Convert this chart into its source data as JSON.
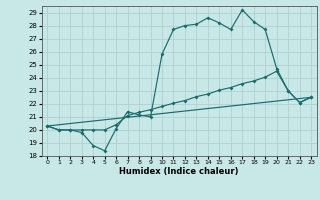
{
  "xlabel": "Humidex (Indice chaleur)",
  "bg_color": "#c8e8e8",
  "grid_color": "#aacccc",
  "line_color": "#1a6b6b",
  "ylim": [
    18,
    29.5
  ],
  "xlim": [
    -0.5,
    23.5
  ],
  "yticks": [
    18,
    19,
    20,
    21,
    22,
    23,
    24,
    25,
    26,
    27,
    28,
    29
  ],
  "xticks": [
    0,
    1,
    2,
    3,
    4,
    5,
    6,
    7,
    8,
    9,
    10,
    11,
    12,
    13,
    14,
    15,
    16,
    17,
    18,
    19,
    20,
    21,
    22,
    23
  ],
  "line1_x": [
    0,
    1,
    2,
    3,
    4,
    5,
    6,
    7,
    8,
    9,
    10,
    11,
    12,
    13,
    14,
    15,
    16,
    17,
    18,
    19,
    20,
    21,
    22,
    23
  ],
  "line1_y": [
    20.3,
    20.0,
    20.0,
    19.8,
    18.8,
    18.4,
    20.1,
    21.4,
    21.15,
    21.0,
    25.8,
    27.7,
    28.0,
    28.1,
    28.6,
    28.2,
    27.7,
    29.2,
    28.3,
    27.7,
    24.7,
    23.0,
    22.1,
    22.5
  ],
  "line2_x": [
    0,
    1,
    2,
    3,
    4,
    5,
    6,
    7,
    8,
    9,
    10,
    11,
    12,
    13,
    14,
    15,
    16,
    17,
    18,
    19,
    20,
    21,
    22,
    23
  ],
  "line2_y": [
    20.3,
    20.0,
    20.0,
    20.0,
    20.0,
    20.0,
    20.4,
    21.1,
    21.35,
    21.55,
    21.8,
    22.05,
    22.25,
    22.55,
    22.75,
    23.05,
    23.25,
    23.55,
    23.75,
    24.05,
    24.5,
    23.0,
    22.1,
    22.5
  ],
  "line3_x": [
    0,
    23
  ],
  "line3_y": [
    20.3,
    22.5
  ]
}
